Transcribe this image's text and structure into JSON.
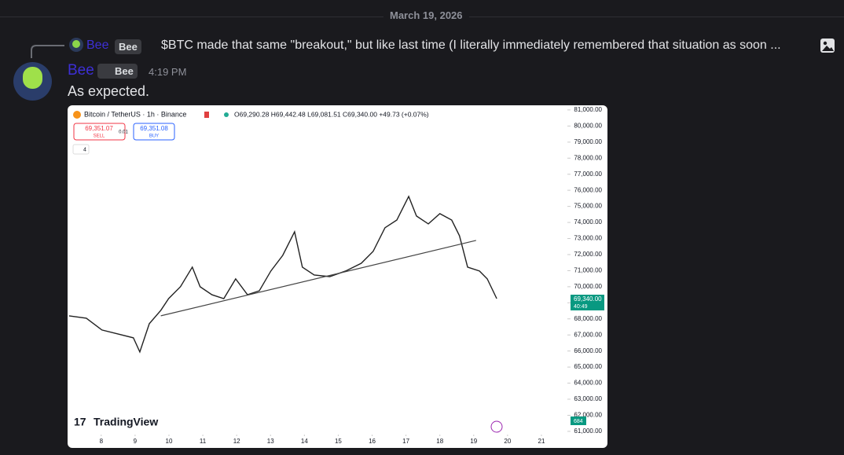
{
  "divider": {
    "date": "March 19, 2026"
  },
  "reply": {
    "author": "Bee",
    "tag": "Bee",
    "text": "$BTC made that same \"breakout,\" but like last time (I literally immediately remembered that situation as soon ..."
  },
  "message": {
    "author": "Bee",
    "tag": "Bee",
    "time": "4:19 PM",
    "text": "As expected."
  },
  "chart_data": {
    "type": "line",
    "title": "Bitcoin / TetherUS · 1h · Binance",
    "ohlc": "O69,290.28 H69,442.48 L69,081.51 C69,340.00 +49.73 (+0.07%)",
    "sell_price": "69,351.07",
    "sell_label": "SELL",
    "quantity": "0.01",
    "buy_price": "69,351.08",
    "buy_label": "BUY",
    "indicator_count": "4",
    "last_price": "69,340.00",
    "countdown": "40:49",
    "volume_label": "684",
    "brand": "TradingView",
    "x": [
      7.05,
      7.56,
      8.02,
      8.49,
      8.95,
      9.14,
      9.42,
      9.76,
      9.99,
      10.34,
      10.69,
      10.92,
      11.27,
      11.62,
      11.97,
      12.32,
      12.67,
      13.01,
      13.36,
      13.71,
      13.94,
      14.29,
      14.75,
      15.22,
      15.68,
      16.03,
      16.38,
      16.73,
      17.08,
      17.31,
      17.66,
      18.0,
      18.35,
      18.58,
      18.82,
      19.17,
      19.4,
      19.68
    ],
    "values": [
      68190,
      68040,
      67310,
      67060,
      66820,
      65940,
      67700,
      68530,
      69260,
      70000,
      71220,
      70000,
      69500,
      69260,
      70490,
      69500,
      69750,
      70980,
      71950,
      73420,
      71220,
      70730,
      70630,
      70980,
      71460,
      72200,
      73670,
      74150,
      75620,
      74400,
      73910,
      74550,
      74150,
      73170,
      71220,
      70980,
      70490,
      69260
    ],
    "color": "#222222",
    "trendline": {
      "x": [
        9.76,
        19.07
      ],
      "values": [
        68190,
        72880
      ],
      "color": "#444444"
    },
    "xlim": [
      7.03,
      21.72
    ],
    "xticks": [
      8,
      9,
      10,
      11,
      12,
      13,
      14,
      15,
      16,
      17,
      18,
      19,
      20,
      21
    ],
    "ylim": [
      60800,
      81290
    ],
    "yticks": [
      {
        "value": 61000,
        "label": "61,000.00"
      },
      {
        "value": 62000,
        "label": "62,000.00"
      },
      {
        "value": 63000,
        "label": "63,000.00"
      },
      {
        "value": 64000,
        "label": "64,000.00"
      },
      {
        "value": 65000,
        "label": "65,000.00"
      },
      {
        "value": 66000,
        "label": "66,000.00"
      },
      {
        "value": 67000,
        "label": "67,000.00"
      },
      {
        "value": 68000,
        "label": "68,000.00"
      },
      {
        "value": 69000,
        "label": "69,000.00"
      },
      {
        "value": 70000,
        "label": "70,000.00"
      },
      {
        "value": 71000,
        "label": "71,000.00"
      },
      {
        "value": 72000,
        "label": "72,000.00"
      },
      {
        "value": 73000,
        "label": "73,000.00"
      },
      {
        "value": 74000,
        "label": "74,000.00"
      },
      {
        "value": 75000,
        "label": "75,000.00"
      },
      {
        "value": 76000,
        "label": "76,000.00"
      },
      {
        "value": 77000,
        "label": "77,000.00"
      },
      {
        "value": 78000,
        "label": "78,000.00"
      },
      {
        "value": 79000,
        "label": "79,000.00"
      },
      {
        "value": 80000,
        "label": "80,000.00"
      },
      {
        "value": 81000,
        "label": "81,000.00"
      }
    ],
    "grid": false
  }
}
